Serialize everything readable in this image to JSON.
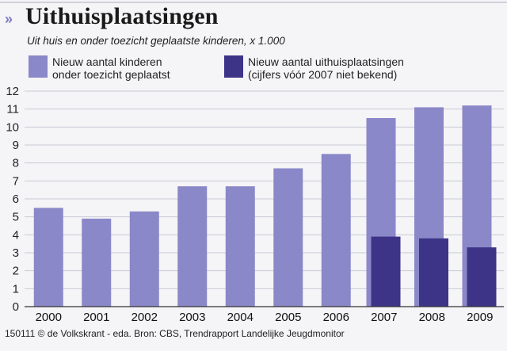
{
  "header": {
    "title": "Uithuisplaatsingen",
    "subtitle": "Uit huis en onder toezicht geplaatste kinderen, x 1.000"
  },
  "legend": [
    {
      "lines": [
        "Nieuw aantal kinderen",
        "onder toezicht geplaatst"
      ],
      "color": "#8a88c8"
    },
    {
      "lines": [
        "Nieuw aantal uithuisplaatsingen",
        "(cijfers vóór 2007 niet bekend)"
      ],
      "color": "#3d3488"
    }
  ],
  "footer": {
    "source": "150111 © de Volkskrant - eda. Bron: CBS, Trendrapport Landelijke Jeugdmonitor"
  },
  "chart_data": {
    "type": "bar",
    "categories": [
      "2000",
      "2001",
      "2002",
      "2003",
      "2004",
      "2005",
      "2006",
      "2007",
      "2008",
      "2009"
    ],
    "series": [
      {
        "name": "Nieuw aantal kinderen onder toezicht geplaatst",
        "color": "#8a88c8",
        "values": [
          5.5,
          4.9,
          5.3,
          6.7,
          6.7,
          7.7,
          8.5,
          10.5,
          11.1,
          11.2
        ]
      },
      {
        "name": "Nieuw aantal uithuisplaatsingen",
        "color": "#3d3488",
        "values": [
          null,
          null,
          null,
          null,
          null,
          null,
          null,
          3.9,
          3.8,
          3.3
        ]
      }
    ],
    "yticks": [
      "0",
      "1",
      "2",
      "3",
      "4",
      "5",
      "6",
      "7",
      "8",
      "9",
      "10",
      "11",
      "12"
    ],
    "ylim": [
      0,
      12
    ],
    "grid": true,
    "legend_position": "top"
  }
}
